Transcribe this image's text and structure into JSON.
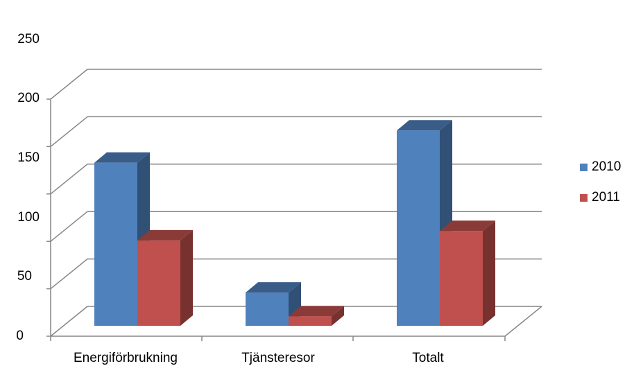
{
  "chart_data": {
    "type": "bar",
    "categories": [
      "Energiförbrukning",
      "Tjänsteresor",
      "Totalt"
    ],
    "series": [
      {
        "name": "2010",
        "values": [
          172,
          35,
          206
        ],
        "color": "#4F81BD"
      },
      {
        "name": "2011",
        "values": [
          90,
          10,
          100
        ],
        "color": "#C0504D"
      }
    ],
    "yticks": [
      "0",
      "50",
      "100",
      "150",
      "200",
      "250"
    ],
    "ylim": [
      0,
      250
    ],
    "grid": true,
    "legend": "right",
    "style": "3d-clustered-column"
  }
}
